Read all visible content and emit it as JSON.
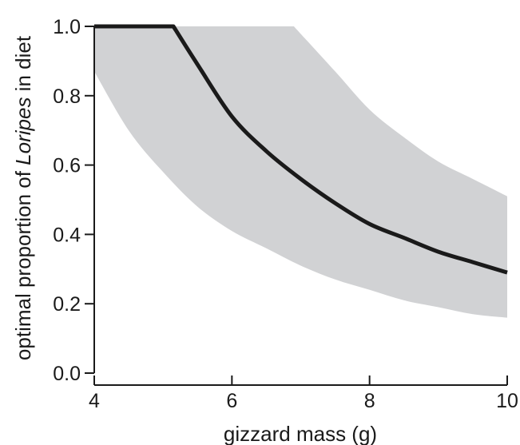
{
  "chart_data": {
    "type": "area",
    "xlabel": "gizzard mass (g)",
    "ylabel_parts": [
      "optimal proportion of ",
      "Loripes",
      " in diet"
    ],
    "xlim": [
      4,
      10
    ],
    "ylim": [
      0,
      1
    ],
    "x_ticks": [
      4,
      6,
      8,
      10
    ],
    "x_tick_labels": [
      "4",
      "6",
      "8",
      "10"
    ],
    "y_ticks": [
      0,
      0.2,
      0.4,
      0.6,
      0.8,
      1.0
    ],
    "y_tick_labels": [
      "0.0",
      "0.2",
      "0.4",
      "0.6",
      "0.8",
      "1.0"
    ],
    "grid": false,
    "legend": "none",
    "colors": {
      "band": "#d1d2d4",
      "line": "#1a1a1a"
    },
    "series": [
      {
        "role": "line",
        "x": [
          4.0,
          5.15,
          5.5,
          6.0,
          6.5,
          7.0,
          7.5,
          8.0,
          8.5,
          9.0,
          9.5,
          10.0
        ],
        "y": [
          1.0,
          1.0,
          0.89,
          0.74,
          0.64,
          0.56,
          0.49,
          0.43,
          0.39,
          0.35,
          0.32,
          0.29
        ]
      },
      {
        "role": "band-upper",
        "x": [
          4.0,
          6.9,
          7.5,
          8.0,
          8.5,
          9.0,
          9.5,
          10.0
        ],
        "y": [
          1.0,
          1.0,
          0.87,
          0.76,
          0.68,
          0.61,
          0.56,
          0.51
        ]
      },
      {
        "role": "band-lower",
        "x": [
          4.0,
          4.5,
          5.0,
          5.5,
          6.0,
          6.5,
          7.0,
          7.5,
          8.0,
          8.5,
          9.0,
          9.5,
          10.0
        ],
        "y": [
          0.87,
          0.7,
          0.58,
          0.48,
          0.41,
          0.36,
          0.31,
          0.27,
          0.24,
          0.21,
          0.19,
          0.17,
          0.16
        ]
      }
    ]
  }
}
